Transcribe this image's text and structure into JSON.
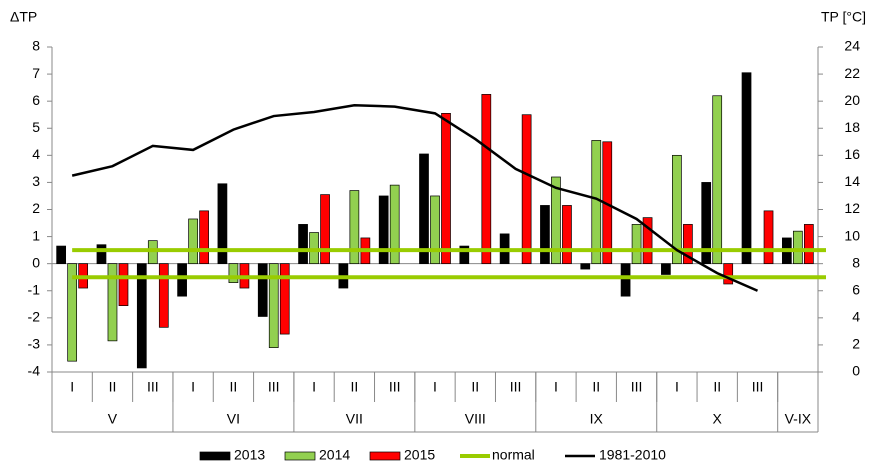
{
  "chart_data": {
    "type": "bar",
    "y_label": "ΔTP",
    "y2_label": "TP [°C]",
    "categories": [
      "I",
      "II",
      "III",
      "I",
      "II",
      "III",
      "I",
      "II",
      "III",
      "I",
      "II",
      "III",
      "I",
      "II",
      "III",
      "I",
      "II",
      "III",
      null
    ],
    "groups": [
      {
        "label": "V",
        "count": 3
      },
      {
        "label": "VI",
        "count": 3
      },
      {
        "label": "VII",
        "count": 3
      },
      {
        "label": "VIII",
        "count": 3
      },
      {
        "label": "IX",
        "count": 3
      },
      {
        "label": "X",
        "count": 3
      },
      {
        "label": "V-IX",
        "count": 1
      }
    ],
    "series": [
      {
        "name": "2013",
        "color": "#000000",
        "values": [
          0.65,
          0.7,
          -3.85,
          -1.2,
          2.95,
          -1.95,
          1.45,
          -0.9,
          2.5,
          4.05,
          0.65,
          1.1,
          2.15,
          -0.2,
          -1.2,
          -0.4,
          3.0,
          7.05,
          0.95
        ]
      },
      {
        "name": "2014",
        "color": "#92d050",
        "values": [
          -3.6,
          -2.85,
          0.85,
          1.65,
          -0.7,
          -3.1,
          1.15,
          2.7,
          2.9,
          2.5,
          null,
          null,
          3.2,
          4.55,
          1.45,
          4.0,
          6.2,
          null,
          1.2
        ]
      },
      {
        "name": "2015",
        "color": "#ff0000",
        "values": [
          -0.9,
          -1.55,
          -2.35,
          1.95,
          -0.9,
          -2.6,
          2.55,
          0.95,
          null,
          5.55,
          6.25,
          5.5,
          2.15,
          4.5,
          1.7,
          1.45,
          -0.75,
          1.95,
          1.45
        ]
      }
    ],
    "normal": {
      "name": "normal",
      "color": "#99cc00",
      "values": [
        0.5,
        -0.5
      ]
    },
    "line": {
      "name": "1981-2010",
      "color": "#000000",
      "axis": "y2",
      "values": [
        14.5,
        15.2,
        16.7,
        16.4,
        17.9,
        18.9,
        19.2,
        19.7,
        19.6,
        19.1,
        17.2,
        15.0,
        13.6,
        12.8,
        11.3,
        9.0,
        7.3,
        6.0,
        null
      ]
    },
    "ylim": [
      -4,
      8
    ],
    "yticks": [
      -4,
      -3,
      -2,
      -1,
      0,
      1,
      2,
      3,
      4,
      5,
      6,
      7,
      8
    ],
    "y2lim": [
      0,
      24
    ],
    "y2ticks": [
      0,
      2,
      4,
      6,
      8,
      10,
      12,
      14,
      16,
      18,
      20,
      22,
      24
    ]
  }
}
